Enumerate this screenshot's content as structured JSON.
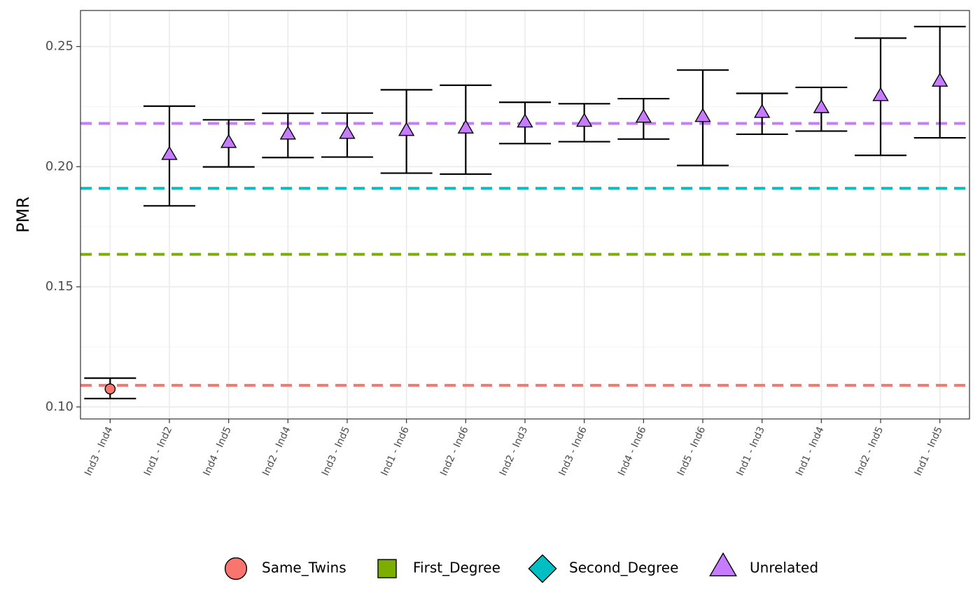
{
  "chart_data": {
    "type": "scatter",
    "title": "",
    "xlabel": "",
    "ylabel": "PMR",
    "ylim": [
      0.095,
      0.265
    ],
    "yticks": [
      0.1,
      0.15,
      0.2,
      0.25
    ],
    "ytick_labels": [
      "0.10",
      "0.15",
      "0.20",
      "0.25"
    ],
    "grid": true,
    "legend_position": "bottom",
    "categories": [
      "Ind3 - Ind4",
      "Ind1 - Ind2",
      "Ind4 - Ind5",
      "Ind2 - Ind4",
      "Ind3 - Ind5",
      "Ind1 - Ind6",
      "Ind2 - Ind6",
      "Ind2 - Ind3",
      "Ind3 - Ind6",
      "Ind4 - Ind6",
      "Ind5 - Ind6",
      "Ind1 - Ind3",
      "Ind1 - Ind4",
      "Ind2 - Ind5",
      "Ind1 - Ind5"
    ],
    "points": [
      {
        "pair": "Ind3 - Ind4",
        "group": "Same_Twins",
        "pmr": 0.1075,
        "lower": 0.1035,
        "upper": 0.112
      },
      {
        "pair": "Ind1 - Ind2",
        "group": "Unrelated",
        "pmr": 0.205,
        "lower": 0.1837,
        "upper": 0.2252
      },
      {
        "pair": "Ind4 - Ind5",
        "group": "Unrelated",
        "pmr": 0.21,
        "lower": 0.1999,
        "upper": 0.2195
      },
      {
        "pair": "Ind2 - Ind4",
        "group": "Unrelated",
        "pmr": 0.2135,
        "lower": 0.2038,
        "upper": 0.2222
      },
      {
        "pair": "Ind3 - Ind5",
        "group": "Unrelated",
        "pmr": 0.2138,
        "lower": 0.204,
        "upper": 0.2223
      },
      {
        "pair": "Ind1 - Ind6",
        "group": "Unrelated",
        "pmr": 0.215,
        "lower": 0.1973,
        "upper": 0.232
      },
      {
        "pair": "Ind2 - Ind6",
        "group": "Unrelated",
        "pmr": 0.216,
        "lower": 0.1969,
        "upper": 0.2339
      },
      {
        "pair": "Ind2 - Ind3",
        "group": "Unrelated",
        "pmr": 0.2185,
        "lower": 0.2096,
        "upper": 0.2268
      },
      {
        "pair": "Ind3 - Ind6",
        "group": "Unrelated",
        "pmr": 0.2188,
        "lower": 0.2104,
        "upper": 0.2262
      },
      {
        "pair": "Ind4 - Ind6",
        "group": "Unrelated",
        "pmr": 0.2205,
        "lower": 0.2115,
        "upper": 0.2283
      },
      {
        "pair": "Ind5 - Ind6",
        "group": "Unrelated",
        "pmr": 0.2208,
        "lower": 0.2005,
        "upper": 0.2402
      },
      {
        "pair": "Ind1 - Ind3",
        "group": "Unrelated",
        "pmr": 0.2225,
        "lower": 0.2135,
        "upper": 0.2305
      },
      {
        "pair": "Ind1 - Ind4",
        "group": "Unrelated",
        "pmr": 0.2245,
        "lower": 0.2148,
        "upper": 0.233
      },
      {
        "pair": "Ind2 - Ind5",
        "group": "Unrelated",
        "pmr": 0.2295,
        "lower": 0.2047,
        "upper": 0.2535
      },
      {
        "pair": "Ind1 - Ind5",
        "group": "Unrelated",
        "pmr": 0.2355,
        "lower": 0.212,
        "upper": 0.2583
      }
    ],
    "reference_lines": [
      {
        "group": "Same_Twins",
        "value": 0.109
      },
      {
        "group": "First_Degree",
        "value": 0.1635
      },
      {
        "group": "Second_Degree",
        "value": 0.191
      },
      {
        "group": "Unrelated",
        "value": 0.218
      }
    ],
    "legend": [
      {
        "label": "Same_Twins",
        "shape": "circle",
        "color": "#F8766D"
      },
      {
        "label": "First_Degree",
        "shape": "square",
        "color": "#7CAE00"
      },
      {
        "label": "Second_Degree",
        "shape": "diamond",
        "color": "#00BFC4"
      },
      {
        "label": "Unrelated",
        "shape": "triangle",
        "color": "#C77CFF"
      }
    ]
  }
}
